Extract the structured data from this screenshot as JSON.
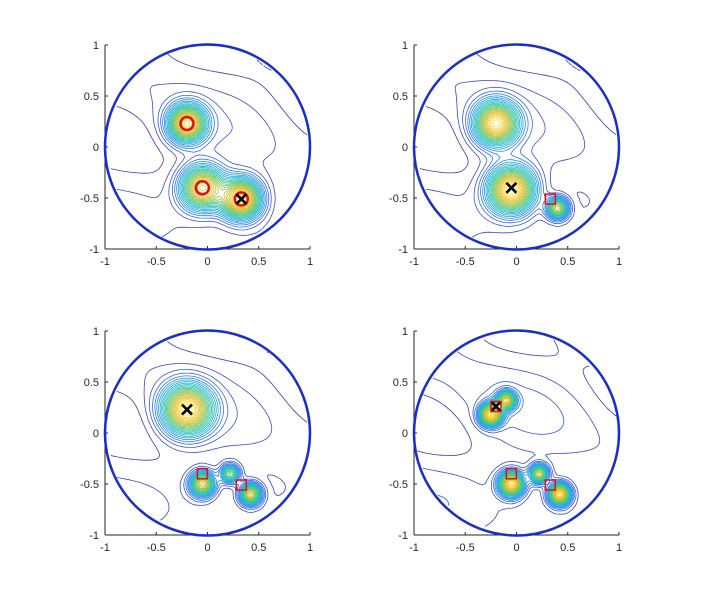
{
  "chart_data": [
    {
      "type": "contour",
      "panel": "top-left",
      "xlim": [
        -1,
        1
      ],
      "ylim": [
        -1,
        1
      ],
      "xticks": [
        "-1",
        "-0.5",
        "0",
        "0.5",
        "1"
      ],
      "yticks": [
        "-1",
        "-0.5",
        "0",
        "0.5",
        "1"
      ],
      "boundary": {
        "shape": "circle",
        "center": [
          0,
          0
        ],
        "radius": 1
      },
      "peaks": [
        {
          "x": -0.2,
          "y": 0.23,
          "amp": 0.9,
          "sigma": 0.12
        },
        {
          "x": -0.05,
          "y": -0.4,
          "amp": 0.9,
          "sigma": 0.14
        },
        {
          "x": 0.33,
          "y": -0.51,
          "amp": 1.0,
          "sigma": 0.13
        }
      ],
      "markers": [
        {
          "kind": "circle",
          "x": -0.2,
          "y": 0.23,
          "color": "#e01010"
        },
        {
          "kind": "circle",
          "x": -0.05,
          "y": -0.4,
          "color": "#e01010"
        },
        {
          "kind": "circle",
          "x": 0.33,
          "y": -0.51,
          "color": "#e01010"
        },
        {
          "kind": "cross",
          "x": 0.33,
          "y": -0.51,
          "color": "#000000"
        }
      ]
    },
    {
      "type": "contour",
      "panel": "top-right",
      "xlim": [
        -1,
        1
      ],
      "ylim": [
        -1,
        1
      ],
      "xticks": [
        "-1",
        "-0.5",
        "0",
        "0.5",
        "1"
      ],
      "yticks": [
        "-1",
        "-0.5",
        "0",
        "0.5",
        "1"
      ],
      "boundary": {
        "shape": "circle",
        "center": [
          0,
          0
        ],
        "radius": 1
      },
      "peaks": [
        {
          "x": -0.2,
          "y": 0.23,
          "amp": 0.9,
          "sigma": 0.14
        },
        {
          "x": -0.05,
          "y": -0.42,
          "amp": 1.0,
          "sigma": 0.15
        },
        {
          "x": 0.4,
          "y": -0.6,
          "amp": 0.7,
          "sigma": 0.07
        }
      ],
      "markers": [
        {
          "kind": "cross",
          "x": -0.05,
          "y": -0.4,
          "color": "#000000"
        },
        {
          "kind": "square",
          "x": 0.33,
          "y": -0.51,
          "color": "#e01010"
        }
      ]
    },
    {
      "type": "contour",
      "panel": "bottom-left",
      "xlim": [
        -1,
        1
      ],
      "ylim": [
        -1,
        1
      ],
      "xticks": [
        "-1",
        "-0.5",
        "0",
        "0.5",
        "1"
      ],
      "yticks": [
        "-1",
        "-0.5",
        "0",
        "0.5",
        "1"
      ],
      "boundary": {
        "shape": "circle",
        "center": [
          0,
          0
        ],
        "radius": 1
      },
      "peaks": [
        {
          "x": -0.2,
          "y": 0.23,
          "amp": 1.0,
          "sigma": 0.16
        },
        {
          "x": -0.05,
          "y": -0.5,
          "amp": 0.8,
          "sigma": 0.08
        },
        {
          "x": 0.22,
          "y": -0.4,
          "amp": 0.6,
          "sigma": 0.06
        },
        {
          "x": 0.42,
          "y": -0.6,
          "amp": 0.8,
          "sigma": 0.07
        }
      ],
      "markers": [
        {
          "kind": "cross",
          "x": -0.2,
          "y": 0.23,
          "color": "#000000"
        },
        {
          "kind": "square",
          "x": -0.05,
          "y": -0.4,
          "color": "#e01010"
        },
        {
          "kind": "square",
          "x": 0.33,
          "y": -0.51,
          "color": "#e01010"
        }
      ]
    },
    {
      "type": "contour",
      "panel": "bottom-right",
      "xlim": [
        -1,
        1
      ],
      "ylim": [
        -1,
        1
      ],
      "xticks": [
        "-1",
        "-0.5",
        "0",
        "0.5",
        "1"
      ],
      "yticks": [
        "-1",
        "-0.5",
        "0",
        "0.5",
        "1"
      ],
      "boundary": {
        "shape": "circle",
        "center": [
          0,
          0
        ],
        "radius": 1
      },
      "peaks": [
        {
          "x": -0.25,
          "y": 0.18,
          "amp": 0.8,
          "sigma": 0.07
        },
        {
          "x": -0.1,
          "y": 0.32,
          "amp": 0.6,
          "sigma": 0.06
        },
        {
          "x": -0.05,
          "y": -0.5,
          "amp": 0.8,
          "sigma": 0.08
        },
        {
          "x": 0.22,
          "y": -0.4,
          "amp": 0.6,
          "sigma": 0.06
        },
        {
          "x": 0.42,
          "y": -0.6,
          "amp": 0.8,
          "sigma": 0.07
        }
      ],
      "markers": [
        {
          "kind": "cross",
          "x": -0.2,
          "y": 0.26,
          "color": "#000000"
        },
        {
          "kind": "square",
          "x": -0.2,
          "y": 0.26,
          "color": "#e01010"
        },
        {
          "kind": "square",
          "x": -0.05,
          "y": -0.4,
          "color": "#e01010"
        },
        {
          "kind": "square",
          "x": 0.33,
          "y": -0.51,
          "color": "#e01010"
        }
      ]
    }
  ],
  "colors": {
    "boundary": "#1a2ec8",
    "tick_text": "#262626",
    "axis_line": "#262626",
    "colormap": [
      "#3e26a8",
      "#2f6df2",
      "#14b3d6",
      "#3fc78e",
      "#a7c23b",
      "#f0bd2e",
      "#f9e81b"
    ]
  }
}
